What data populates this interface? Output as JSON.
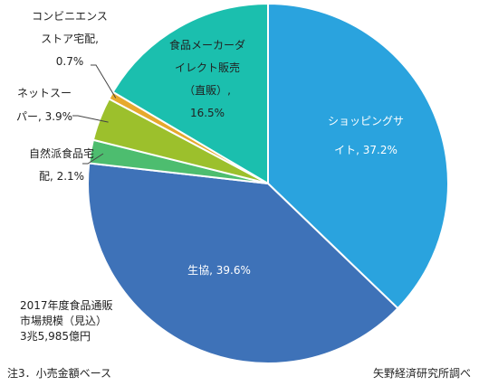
{
  "chart_data": {
    "type": "pie",
    "categories": [
      "ショッピングサイト",
      "生協",
      "自然派食品宅配",
      "ネットスーパー",
      "コンビニエンスストア宅配",
      "食品メーカーダイレクト販売（直販）"
    ],
    "values": [
      37.2,
      39.6,
      2.1,
      3.9,
      0.7,
      16.5
    ],
    "unit": "%",
    "colors": [
      "#2aa3de",
      "#3e72b8",
      "#4dbd6f",
      "#9cc02c",
      "#e6a92d",
      "#1bbfae"
    ],
    "slice_labels": [
      [
        "ショッピングサ",
        "イト, 37.2%"
      ],
      [
        "生協, 39.6%"
      ],
      [
        "自然派食品宅",
        "配, 2.1%"
      ],
      [
        "ネットスー",
        "パー, 3.9%"
      ],
      [
        "コンビニエンス",
        "ストア宅配,",
        "0.7%"
      ],
      [
        "食品メーカーダ",
        "イレクト販売",
        "（直販）,",
        "16.5%"
      ]
    ],
    "total_label": [
      "2017年度食品通販",
      "市場規模（見込）",
      "3兆5,985億円"
    ]
  },
  "footer": {
    "note": "注3．小売金額ベース",
    "source": "矢野経済研究所調べ"
  }
}
